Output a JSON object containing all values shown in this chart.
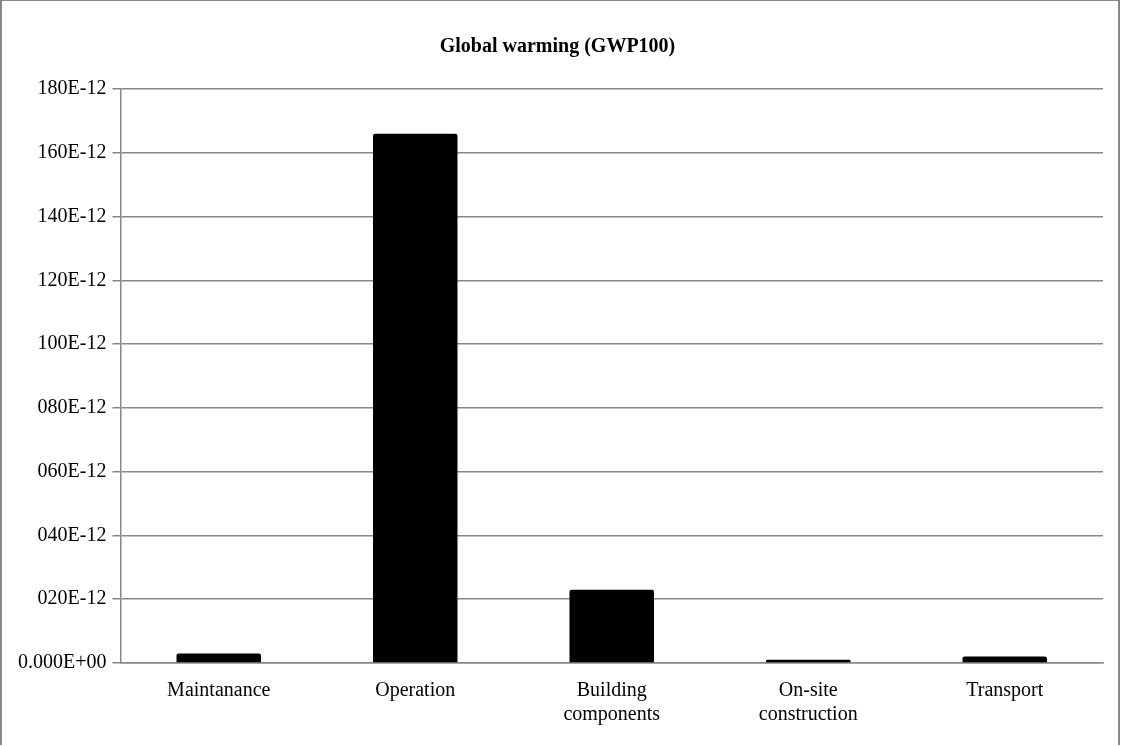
{
  "chart_data": {
    "type": "bar",
    "title": "Global warming (GWP100)",
    "categories": [
      "Maintanance",
      "Operation",
      "Building components",
      "On-site construction",
      "Transport"
    ],
    "values": [
      3e-12,
      1.66e-10,
      2.3e-11,
      1e-12,
      2e-12
    ],
    "color": "#000000",
    "ylim": [
      0,
      1.8e-10
    ],
    "yticks": [
      {
        "value": 0,
        "label": "0.000E+00"
      },
      {
        "value": 2e-11,
        "label": "020E-12"
      },
      {
        "value": 4e-11,
        "label": "040E-12"
      },
      {
        "value": 6e-11,
        "label": "060E-12"
      },
      {
        "value": 8e-11,
        "label": "080E-12"
      },
      {
        "value": 1e-10,
        "label": "100E-12"
      },
      {
        "value": 1.2e-10,
        "label": "120E-12"
      },
      {
        "value": 1.4e-10,
        "label": "140E-12"
      },
      {
        "value": 1.6e-10,
        "label": "160E-12"
      },
      {
        "value": 1.8e-10,
        "label": "180E-12"
      }
    ],
    "grid": "y",
    "legend": false
  }
}
